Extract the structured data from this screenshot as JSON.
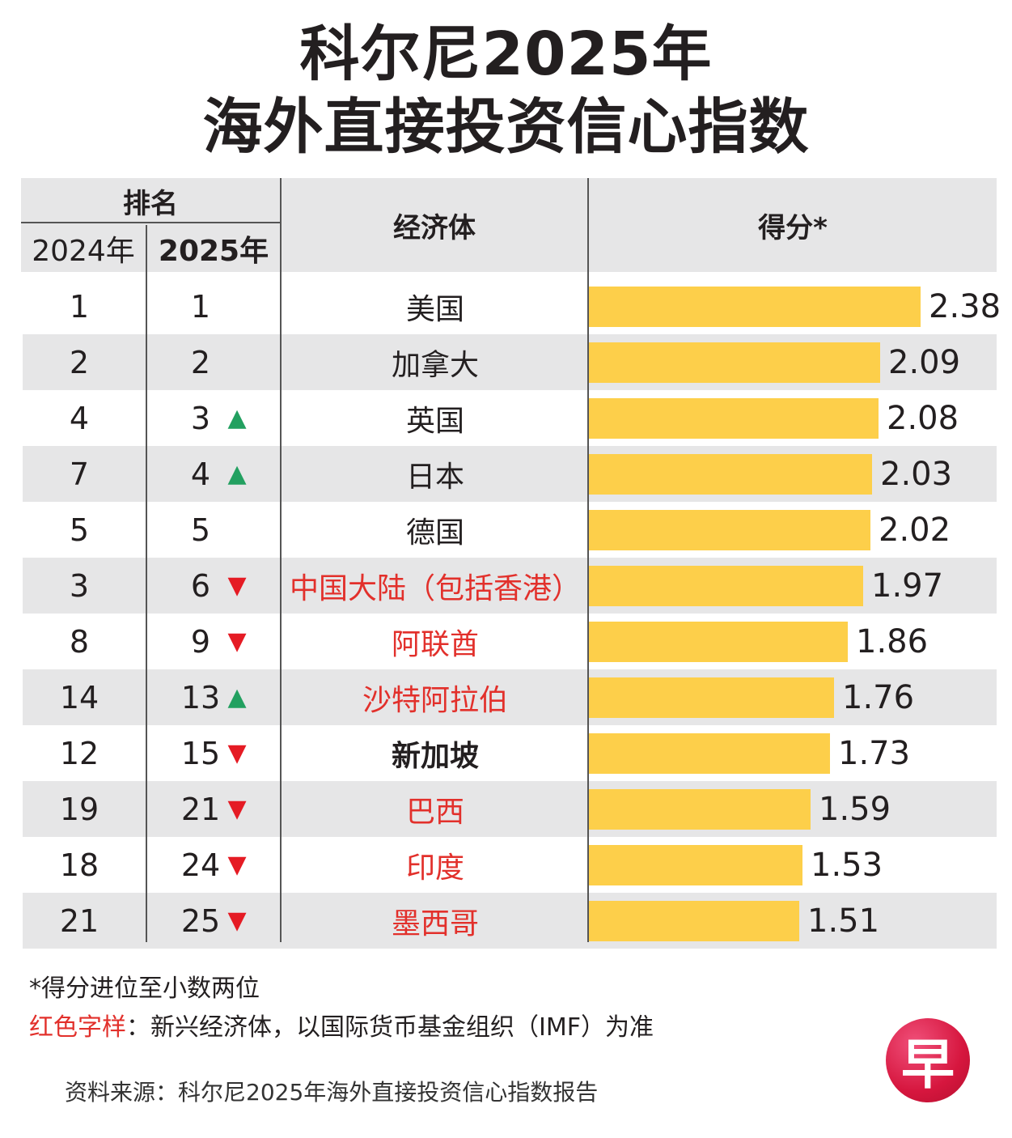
{
  "title": {
    "line1": "科尔尼2025年",
    "line2": "海外直接投资信心指数"
  },
  "header": {
    "rank": "排名",
    "year_prev": "2024年",
    "year_curr": "2025年",
    "economy": "经济体",
    "score": "得分*"
  },
  "chart_data": {
    "type": "bar",
    "orientation": "horizontal",
    "title": "科尔尼2025年海外直接投资信心指数",
    "score_label": "得分*",
    "rows": [
      {
        "rank_2024": "1",
        "rank_2025": "1",
        "change": "",
        "economy": "美国",
        "score": 2.38,
        "score_label": "2.38",
        "emerging": false,
        "highlight": false
      },
      {
        "rank_2024": "2",
        "rank_2025": "2",
        "change": "",
        "economy": "加拿大",
        "score": 2.09,
        "score_label": "2.09",
        "emerging": false,
        "highlight": false
      },
      {
        "rank_2024": "4",
        "rank_2025": "3",
        "change": "up",
        "economy": "英国",
        "score": 2.08,
        "score_label": "2.08",
        "emerging": false,
        "highlight": false
      },
      {
        "rank_2024": "7",
        "rank_2025": "4",
        "change": "up",
        "economy": "日本",
        "score": 2.03,
        "score_label": "2.03",
        "emerging": false,
        "highlight": false
      },
      {
        "rank_2024": "5",
        "rank_2025": "5",
        "change": "",
        "economy": "德国",
        "score": 2.02,
        "score_label": "2.02",
        "emerging": false,
        "highlight": false
      },
      {
        "rank_2024": "3",
        "rank_2025": "6",
        "change": "down",
        "economy": "中国大陆（包括香港）",
        "score": 1.97,
        "score_label": "1.97",
        "emerging": true,
        "highlight": false
      },
      {
        "rank_2024": "8",
        "rank_2025": "9",
        "change": "down",
        "economy": "阿联酋",
        "score": 1.86,
        "score_label": "1.86",
        "emerging": true,
        "highlight": false
      },
      {
        "rank_2024": "14",
        "rank_2025": "13",
        "change": "up",
        "economy": "沙特阿拉伯",
        "score": 1.76,
        "score_label": "1.76",
        "emerging": true,
        "highlight": false
      },
      {
        "rank_2024": "12",
        "rank_2025": "15",
        "change": "down",
        "economy": "新加坡",
        "score": 1.73,
        "score_label": "1.73",
        "emerging": false,
        "highlight": true
      },
      {
        "rank_2024": "19",
        "rank_2025": "21",
        "change": "down",
        "economy": "巴西",
        "score": 1.59,
        "score_label": "1.59",
        "emerging": true,
        "highlight": false
      },
      {
        "rank_2024": "18",
        "rank_2025": "24",
        "change": "down",
        "economy": "印度",
        "score": 1.53,
        "score_label": "1.53",
        "emerging": true,
        "highlight": false
      },
      {
        "rank_2024": "21",
        "rank_2025": "25",
        "change": "down",
        "economy": "墨西哥",
        "score": 1.51,
        "score_label": "1.51",
        "emerging": true,
        "highlight": false
      }
    ],
    "colors": {
      "bar": "#fdcf4a",
      "up": "#22a060",
      "down": "#e51b24",
      "emerging": "#e2302b",
      "header_bg": "#e6e6e7"
    }
  },
  "notes": {
    "rounding": "*得分进位至小数两位",
    "red_label": "红色字样",
    "red_desc": "：新兴经济体，以国际货币基金组织（IMF）为准",
    "source": "资料来源：科尔尼2025年海外直接投资信心指数报告"
  },
  "logo": {
    "char": "早"
  }
}
